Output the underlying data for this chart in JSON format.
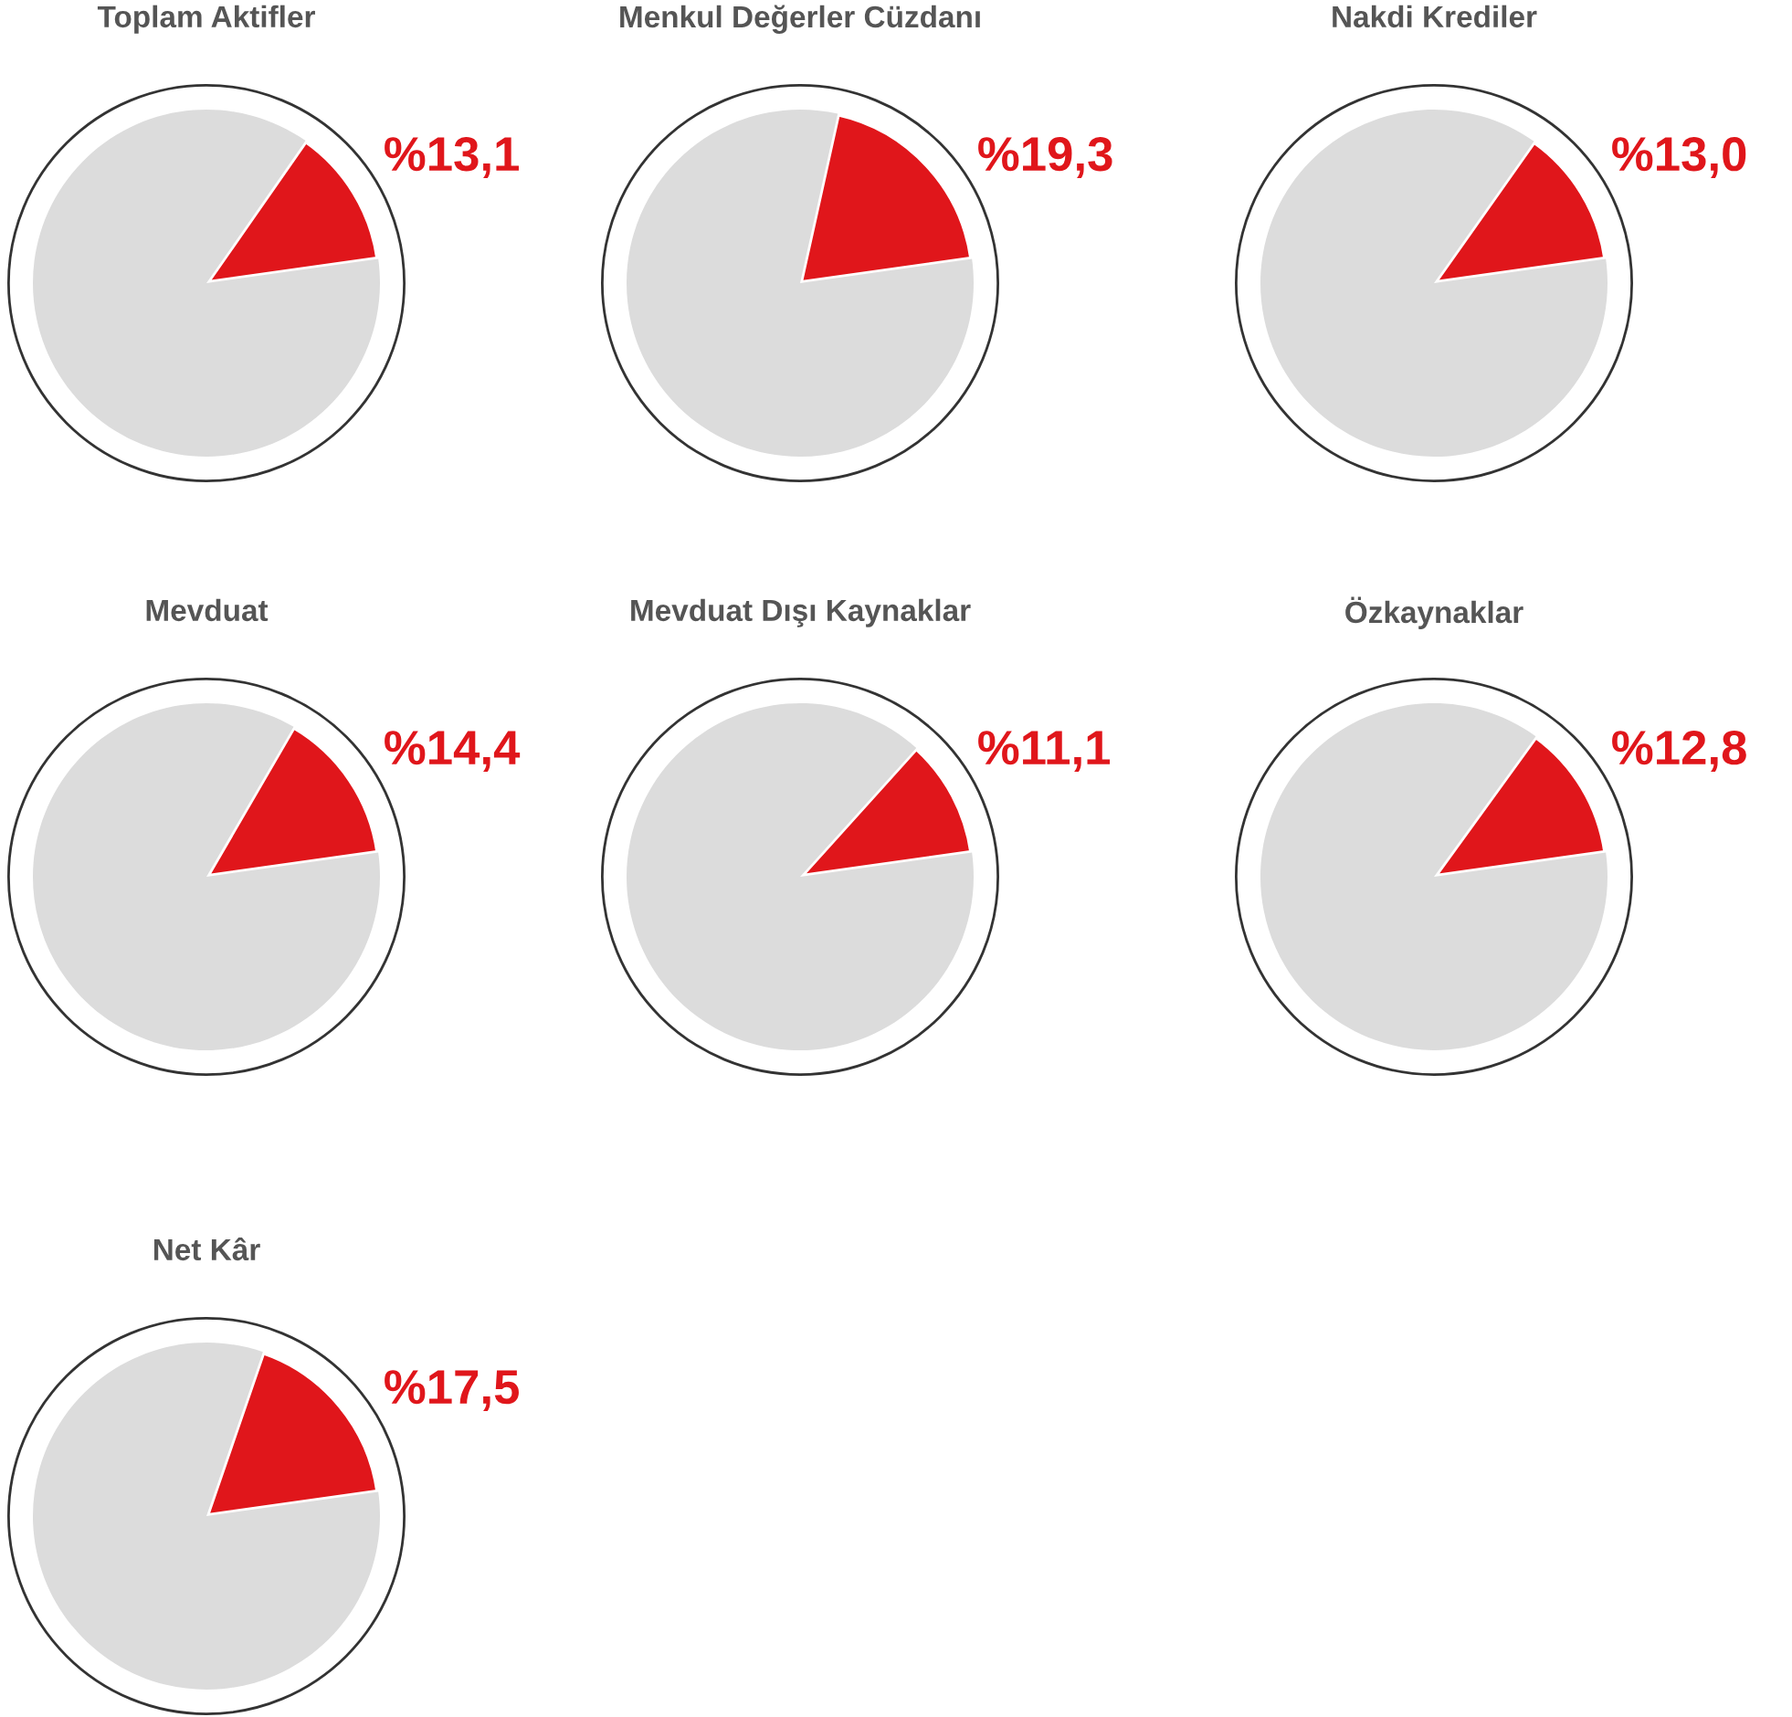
{
  "chart_data": [
    {
      "type": "pie",
      "title": "Toplam Aktifler",
      "categories": [
        null,
        null
      ],
      "values": [
        13.1,
        86.9
      ],
      "colors": [
        "#e0161b",
        "#dcdcdc"
      ],
      "value_labels": [
        "%13,1",
        null
      ]
    },
    {
      "type": "pie",
      "title": "Menkul Değerler Cüzdanı",
      "categories": [
        null,
        null
      ],
      "values": [
        19.3,
        80.7
      ],
      "colors": [
        "#e0161b",
        "#dcdcdc"
      ],
      "value_labels": [
        "%19,3",
        null
      ]
    },
    {
      "type": "pie",
      "title": "Nakdi Krediler",
      "categories": [
        null,
        null
      ],
      "values": [
        13.0,
        87.0
      ],
      "colors": [
        "#e0161b",
        "#dcdcdc"
      ],
      "value_labels": [
        "%13,0",
        null
      ]
    },
    {
      "type": "pie",
      "title": "Mevduat",
      "categories": [
        null,
        null
      ],
      "values": [
        14.4,
        85.6
      ],
      "colors": [
        "#e0161b",
        "#dcdcdc"
      ],
      "value_labels": [
        "%14,4",
        null
      ]
    },
    {
      "type": "pie",
      "title": "Mevduat Dışı Kaynaklar",
      "categories": [
        null,
        null
      ],
      "values": [
        11.1,
        88.9
      ],
      "colors": [
        "#e0161b",
        "#dcdcdc"
      ],
      "value_labels": [
        "%11,1",
        null
      ]
    },
    {
      "type": "pie",
      "title": "Özkaynaklar",
      "categories": [
        null,
        null
      ],
      "values": [
        12.8,
        87.2
      ],
      "colors": [
        "#e0161b",
        "#dcdcdc"
      ],
      "value_labels": [
        "%12,8",
        null
      ]
    },
    {
      "type": "pie",
      "title": "Net Kâr",
      "categories": [
        null,
        null
      ],
      "values": [
        17.5,
        82.5
      ],
      "colors": [
        "#e0161b",
        "#dcdcdc"
      ],
      "value_labels": [
        "%17,5",
        null
      ]
    }
  ]
}
